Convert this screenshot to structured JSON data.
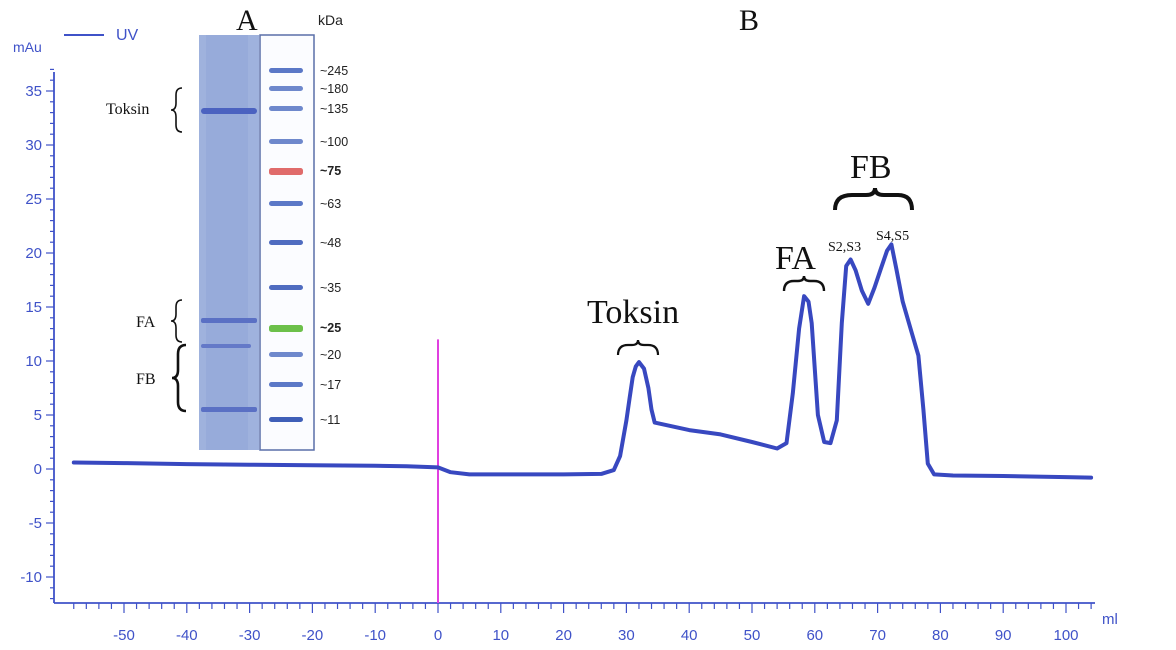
{
  "chart_data": {
    "type": "line",
    "panel_labels": {
      "a": "A",
      "b": "B"
    },
    "ylabel": "mAu",
    "xlabel": "ml",
    "legend": {
      "label": "UV",
      "placement": "top-left"
    },
    "xlim": [
      -58,
      104
    ],
    "ylim": [
      -12,
      37
    ],
    "xticks": [
      "-50",
      "-40",
      "-30",
      "-20",
      "-10",
      "0",
      "10",
      "20",
      "30",
      "40",
      "50",
      "60",
      "70",
      "80",
      "90",
      "100"
    ],
    "yticks": [
      "35",
      "30",
      "25",
      "20",
      "15",
      "10",
      "5",
      "0",
      "-5",
      "-10"
    ],
    "grid": false,
    "marker_line": {
      "x": 0,
      "y_top": 12,
      "color": "#e040e0"
    },
    "series": [
      {
        "name": "UV",
        "color": "#3848c0",
        "x": [
          -58,
          -50,
          -40,
          -30,
          -20,
          -10,
          -5,
          0,
          2,
          5,
          10,
          20,
          26,
          28,
          29,
          30,
          30.5,
          31,
          31.5,
          32,
          32.8,
          33.5,
          34,
          34.5,
          40,
          45,
          50,
          54,
          55.5,
          56.5,
          57.5,
          58.3,
          59,
          59.5,
          60.5,
          61.5,
          62.5,
          63.5,
          64.3,
          65,
          65.7,
          66.5,
          67.5,
          68.5,
          69.5,
          70.5,
          71.5,
          72.2,
          73,
          74,
          75.5,
          76.5,
          77.3,
          78,
          79,
          82,
          90,
          100,
          104
        ],
        "values": [
          0.6,
          0.55,
          0.45,
          0.4,
          0.35,
          0.3,
          0.25,
          0.15,
          -0.3,
          -0.5,
          -0.5,
          -0.5,
          -0.45,
          -0.1,
          1.2,
          4.5,
          6.5,
          8.5,
          9.5,
          9.9,
          9.3,
          7.5,
          5.5,
          4.3,
          3.6,
          3.2,
          2.5,
          1.9,
          2.4,
          7,
          13,
          16,
          15.5,
          13.5,
          5,
          2.5,
          2.4,
          4.5,
          13.5,
          18.8,
          19.4,
          18.4,
          16.5,
          15.3,
          16.8,
          18.5,
          20.2,
          20.8,
          18.5,
          15.5,
          12.5,
          10.5,
          5.5,
          0.5,
          -0.5,
          -0.6,
          -0.65,
          -0.75,
          -0.8
        ]
      }
    ],
    "peak_annotations": [
      {
        "label": "Toksin",
        "x": 31.5
      },
      {
        "label": "FA",
        "x": 58
      },
      {
        "label": "FB",
        "x": 68.5
      },
      {
        "label": "S2,S3",
        "x": 65.5
      },
      {
        "label": "S4,S5",
        "x": 72
      }
    ]
  },
  "gel": {
    "unit_label": "kDa",
    "marker_bands": [
      {
        "label": "~245",
        "color": "#5b78c7"
      },
      {
        "label": "~180",
        "color": "#6e88cc"
      },
      {
        "label": "~135",
        "color": "#6e88cc"
      },
      {
        "label": "~100",
        "color": "#6e88cc"
      },
      {
        "label": "~75",
        "color": "#e06b6b",
        "bold": true
      },
      {
        "label": "~63",
        "color": "#5b78c7"
      },
      {
        "label": "~48",
        "color": "#4f6cc0"
      },
      {
        "label": "~35",
        "color": "#4f6cc0"
      },
      {
        "label": "~25",
        "color": "#6cc04a",
        "bold": true
      },
      {
        "label": "~20",
        "color": "#6e88cc"
      },
      {
        "label": "~17",
        "color": "#5b78c7"
      },
      {
        "label": "~11",
        "color": "#3f5fb8"
      }
    ],
    "sample_labels": [
      "Toksin",
      "FA",
      "FB"
    ]
  }
}
